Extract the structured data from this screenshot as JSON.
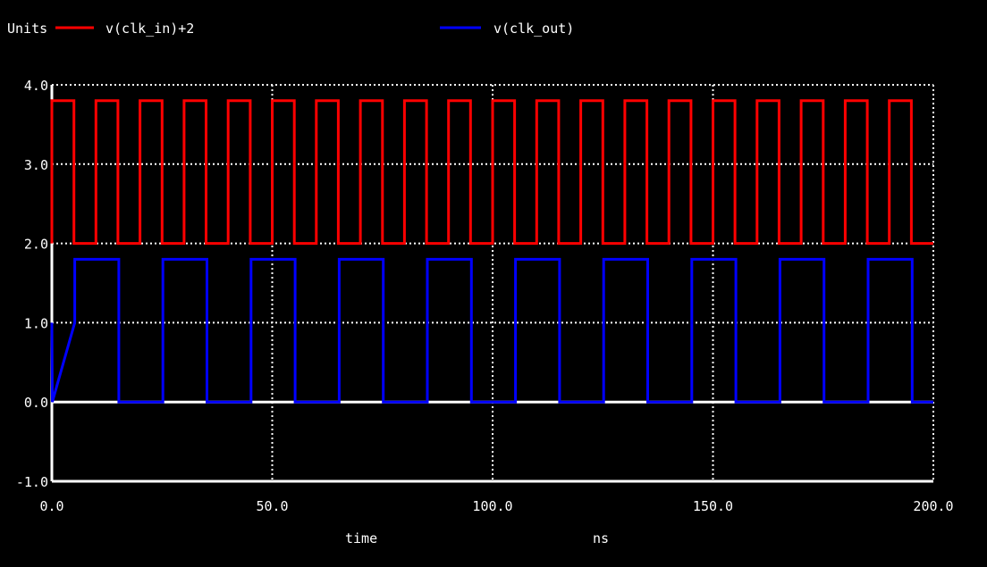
{
  "chart_data": {
    "type": "line",
    "ylabel": "Units",
    "xlabel": "time",
    "xunit": "ns",
    "xlim": [
      0,
      200
    ],
    "ylim": [
      -1,
      4
    ],
    "xticks": [
      0,
      50,
      100,
      150,
      200
    ],
    "xtick_labels": [
      "0.0",
      "50.0",
      "100.0",
      "150.0",
      "200.0"
    ],
    "yticks": [
      -1,
      0,
      1,
      2,
      3,
      4
    ],
    "ytick_labels": [
      "-1.0",
      "0.0",
      "1.0",
      "2.0",
      "3.0",
      "4.0"
    ],
    "grid": true,
    "series": [
      {
        "name": "v(clk_in)+2",
        "color": "#ff0000",
        "kind": "square",
        "period": 10,
        "start_high": 0,
        "high_duration": 5,
        "low": 2.0,
        "high": 3.8
      },
      {
        "name": "v(clk_out)",
        "color": "#0000ff",
        "kind": "square",
        "period": 20,
        "start_high": 5.2,
        "high_duration": 10,
        "low": 0.0,
        "high": 1.8,
        "initial": 1.0
      }
    ]
  }
}
